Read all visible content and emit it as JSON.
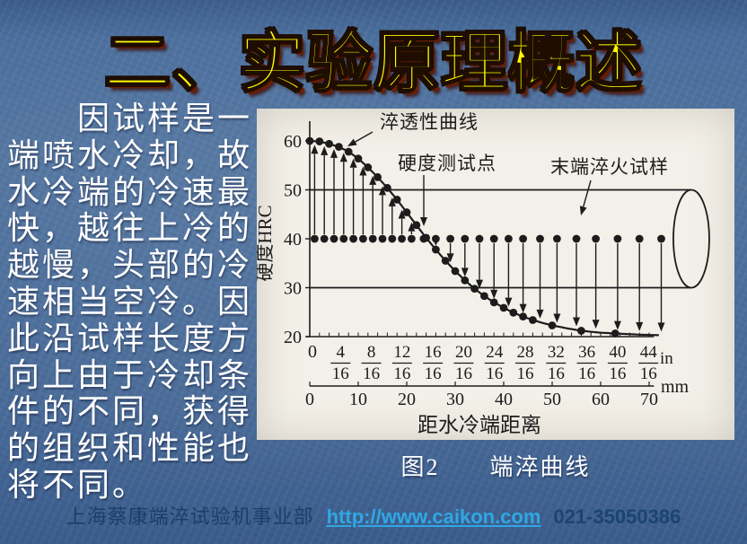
{
  "slide": {
    "title": "二、实验原理概述",
    "body_text": "因试样是一端喷水冷却，故水冷端的冷速最快，越往上冷的越慢，头部的冷速相当空冷。因此沿试样长度方向上由于冷却条件的不同，获得的组织和性能也将不同。",
    "figure_caption": {
      "label": "图2",
      "title": "端淬曲线"
    },
    "footer": {
      "company": "上海蔡康端淬试验机事业部",
      "link_text": "http://www.caikon.com",
      "phone": "021-35050386"
    }
  },
  "colors": {
    "background_blue": "#4a6d9c",
    "title_yellow": "#ffff00",
    "title_shadow_red": "#6b1d00",
    "body_text": "#ffffff",
    "chart_paper": "#f3f0e9",
    "chart_ink": "#1c1c1c",
    "footer_text": "#1a4066",
    "link_cyan": "#2fa8e4"
  },
  "chart_data": {
    "type": "line",
    "title": "",
    "xlabel": "距水冷端距离",
    "ylabel": "硬度HRC",
    "x_axis": {
      "unit_top": "in",
      "unit_bottom": "mm",
      "ticks_in_16ths": [
        0,
        4,
        8,
        12,
        16,
        20,
        24,
        28,
        32,
        36,
        40,
        44
      ],
      "fraction_denominator": "16",
      "ticks_mm": [
        0,
        10,
        20,
        30,
        40,
        50,
        60,
        70
      ]
    },
    "y_ticks": [
      20,
      30,
      40,
      50,
      60
    ],
    "ylim": [
      20,
      62
    ],
    "xlim_mm": [
      0,
      73
    ],
    "grid": false,
    "legend": "none",
    "annotations": [
      {
        "text": "淬透性曲线"
      },
      {
        "text": "硬度测试点"
      },
      {
        "text": "末端淬火试样"
      }
    ],
    "curve_points_mm_hrc": [
      [
        0,
        60
      ],
      [
        2,
        59.9
      ],
      [
        4,
        59.4
      ],
      [
        6,
        58.8
      ],
      [
        8,
        57.8
      ],
      [
        10,
        56.4
      ],
      [
        12,
        54.6
      ],
      [
        14,
        52.6
      ],
      [
        16,
        50.4
      ],
      [
        18,
        48.0
      ],
      [
        20,
        45.4
      ],
      [
        22,
        42.8
      ],
      [
        24,
        40.2
      ],
      [
        26,
        37.8
      ],
      [
        28,
        35.5
      ],
      [
        30,
        33.4
      ],
      [
        32,
        31.5
      ],
      [
        34,
        29.8
      ],
      [
        36,
        28.3
      ],
      [
        38,
        27.0
      ],
      [
        40,
        25.9
      ],
      [
        42,
        24.9
      ],
      [
        44,
        24.1
      ],
      [
        46,
        23.4
      ],
      [
        48,
        22.8
      ],
      [
        50,
        22.3
      ],
      [
        53,
        21.7
      ],
      [
        56,
        21.2
      ],
      [
        60,
        20.8
      ],
      [
        64,
        20.6
      ],
      [
        68,
        20.4
      ],
      [
        72,
        20.3
      ]
    ],
    "curve_dot_positions_mm": [
      0,
      2,
      4,
      6,
      8,
      10,
      12,
      14,
      16,
      18,
      20,
      22,
      24,
      26,
      28,
      30,
      32,
      34,
      36,
      38,
      40,
      42,
      44,
      46,
      50,
      56,
      63
    ],
    "test_points": {
      "hrc": 40,
      "positions_mm": [
        1,
        3,
        5,
        7,
        9,
        11,
        13,
        15,
        17,
        19,
        21,
        23.5,
        26,
        29,
        32,
        35,
        38,
        41,
        44,
        47.5,
        51,
        55,
        59,
        63.5,
        68,
        72.5
      ]
    },
    "specimen": {
      "top_hrc": 50,
      "bottom_hrc": 30,
      "end_mm": 78.7,
      "end_radius_mm": 3.7
    }
  }
}
